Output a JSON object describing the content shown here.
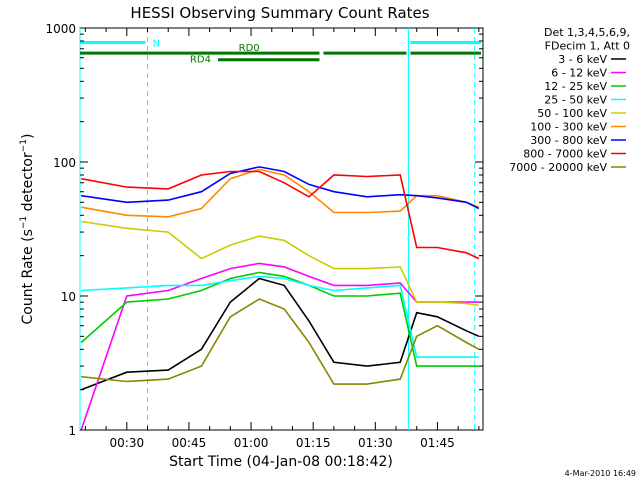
{
  "chart_data": {
    "type": "line",
    "title": "HESSI Observing Summary Count Rates",
    "xlabel": "Start Time (04-Jan-08 00:18:42)",
    "ylabel": "Count Rate (s⁻¹ detector⁻¹)",
    "yscale": "log",
    "ylim": [
      1,
      1000
    ],
    "xlim": [
      "00:18:42",
      "01:56:00"
    ],
    "x_ticks": [
      "00:30",
      "00:45",
      "01:00",
      "01:15",
      "01:30",
      "01:45"
    ],
    "y_ticks": [
      "1",
      "10",
      "100",
      "1000"
    ],
    "legend_header": [
      "Det 1,3,4,5,6,9,",
      "FDecim 1, Att 0"
    ],
    "legend_position": "right",
    "footer_date": "4-Mar-2010 16:49",
    "series": [
      {
        "name": "3 - 6 keV",
        "color": "#000000",
        "x": [
          "00:19",
          "00:30",
          "00:40",
          "00:48",
          "00:55",
          "01:02",
          "01:08",
          "01:14",
          "01:20",
          "01:28",
          "01:36",
          "01:40",
          "01:45",
          "01:52",
          "01:55"
        ],
        "y": [
          2.0,
          2.7,
          2.8,
          4.0,
          9.0,
          13.5,
          12.0,
          6.5,
          3.2,
          3.0,
          3.2,
          7.5,
          7.0,
          5.5,
          5.0
        ]
      },
      {
        "name": "6 - 12 keV",
        "color": "#ff00ff",
        "x": [
          "00:19",
          "00:30",
          "00:40",
          "00:48",
          "00:55",
          "01:02",
          "01:08",
          "01:14",
          "01:20",
          "01:28",
          "01:36",
          "01:40",
          "01:45",
          "01:52",
          "01:55"
        ],
        "y": [
          1.0,
          10.0,
          11.0,
          13.5,
          16.0,
          17.5,
          16.5,
          14.0,
          12.0,
          12.0,
          12.5,
          9.0,
          9.0,
          9.0,
          9.0
        ]
      },
      {
        "name": "12 - 25 keV",
        "color": "#00cc00",
        "x": [
          "00:19",
          "00:30",
          "00:40",
          "00:48",
          "00:55",
          "01:02",
          "01:08",
          "01:14",
          "01:20",
          "01:28",
          "01:36",
          "01:40",
          "01:45",
          "01:52",
          "01:55"
        ],
        "y": [
          4.5,
          9.0,
          9.5,
          11.0,
          13.5,
          15.0,
          14.0,
          12.0,
          10.0,
          10.0,
          10.5,
          3.0,
          3.0,
          3.0,
          3.0
        ]
      },
      {
        "name": "25 - 50 keV",
        "color": "#00ffff",
        "x": [
          "00:19",
          "00:30",
          "00:40",
          "00:48",
          "00:55",
          "01:02",
          "01:08",
          "01:14",
          "01:20",
          "01:28",
          "01:36",
          "01:40",
          "01:45",
          "01:52",
          "01:55"
        ],
        "y": [
          11.0,
          11.5,
          12.0,
          12.0,
          13.0,
          14.0,
          13.5,
          12.0,
          11.0,
          11.5,
          12.0,
          3.5,
          3.5,
          3.5,
          3.5
        ]
      },
      {
        "name": "50 - 100 keV",
        "color": "#cccc00",
        "x": [
          "00:19",
          "00:30",
          "00:40",
          "00:48",
          "00:55",
          "01:02",
          "01:08",
          "01:14",
          "01:20",
          "01:28",
          "01:36",
          "01:40",
          "01:45",
          "01:52",
          "01:55"
        ],
        "y": [
          36.0,
          32.0,
          30.0,
          19.0,
          24.0,
          28.0,
          26.0,
          20.0,
          16.0,
          16.0,
          16.5,
          9.0,
          9.0,
          8.8,
          8.5
        ]
      },
      {
        "name": "100 - 300 keV",
        "color": "#ff8800",
        "x": [
          "00:19",
          "00:30",
          "00:40",
          "00:48",
          "00:55",
          "01:02",
          "01:08",
          "01:14",
          "01:20",
          "01:28",
          "01:36",
          "01:40",
          "01:45",
          "01:52",
          "01:55"
        ],
        "y": [
          46.0,
          40.0,
          39.0,
          45.0,
          75.0,
          88.0,
          80.0,
          60.0,
          42.0,
          42.0,
          43.0,
          56.0,
          56.0,
          50.0,
          46.0
        ]
      },
      {
        "name": "300 - 800 keV",
        "color": "#0000ff",
        "x": [
          "00:19",
          "00:30",
          "00:40",
          "00:48",
          "00:55",
          "01:02",
          "01:08",
          "01:14",
          "01:20",
          "01:28",
          "01:36",
          "01:40",
          "01:45",
          "01:52",
          "01:55"
        ],
        "y": [
          56.0,
          50.0,
          52.0,
          60.0,
          82.0,
          92.0,
          85.0,
          68.0,
          60.0,
          55.0,
          57.0,
          56.0,
          54.0,
          50.0,
          45.0
        ]
      },
      {
        "name": "800 - 7000 keV",
        "color": "#ff0000",
        "x": [
          "00:19",
          "00:30",
          "00:40",
          "00:48",
          "00:55",
          "01:02",
          "01:08",
          "01:14",
          "01:20",
          "01:28",
          "01:36",
          "01:40",
          "01:45",
          "01:52",
          "01:55"
        ],
        "y": [
          75.0,
          65.0,
          63.0,
          80.0,
          85.0,
          85.0,
          70.0,
          55.0,
          80.0,
          78.0,
          80.0,
          23.0,
          23.0,
          21.0,
          19.0
        ]
      },
      {
        "name": "7000 - 20000 keV",
        "color": "#888800",
        "x": [
          "00:19",
          "00:30",
          "00:40",
          "00:48",
          "00:55",
          "01:02",
          "01:08",
          "01:14",
          "01:20",
          "01:28",
          "01:36",
          "01:40",
          "01:45",
          "01:52",
          "01:55"
        ],
        "y": [
          2.5,
          2.3,
          2.4,
          3.0,
          7.0,
          9.5,
          8.0,
          4.5,
          2.2,
          2.2,
          2.4,
          5.0,
          6.0,
          4.5,
          4.0
        ]
      }
    ],
    "markers": [
      {
        "label": "N",
        "color": "#00ffff",
        "y": 780,
        "segments": [
          [
            "00:18:42",
            "00:35"
          ],
          [
            "01:38",
            "01:56"
          ]
        ]
      },
      {
        "label": "RD0",
        "color": "#007700",
        "y": 650,
        "segments": [
          [
            "00:18:42",
            "01:17"
          ],
          [
            "01:17",
            "01:38"
          ],
          [
            "01:38",
            "01:56"
          ]
        ]
      },
      {
        "label": "RD4",
        "color": "#007700",
        "y": 580,
        "segments": [
          [
            "00:52",
            "01:17"
          ]
        ]
      }
    ],
    "vlines": [
      {
        "x": "00:18:42",
        "color": "#00ffff",
        "style": "solid"
      },
      {
        "x": "00:35",
        "color": "#00ffff",
        "style": "dashed"
      },
      {
        "x": "01:38",
        "color": "#00ffff",
        "style": "solid"
      },
      {
        "x": "01:54",
        "color": "#00ffff",
        "style": "dashed"
      }
    ]
  }
}
